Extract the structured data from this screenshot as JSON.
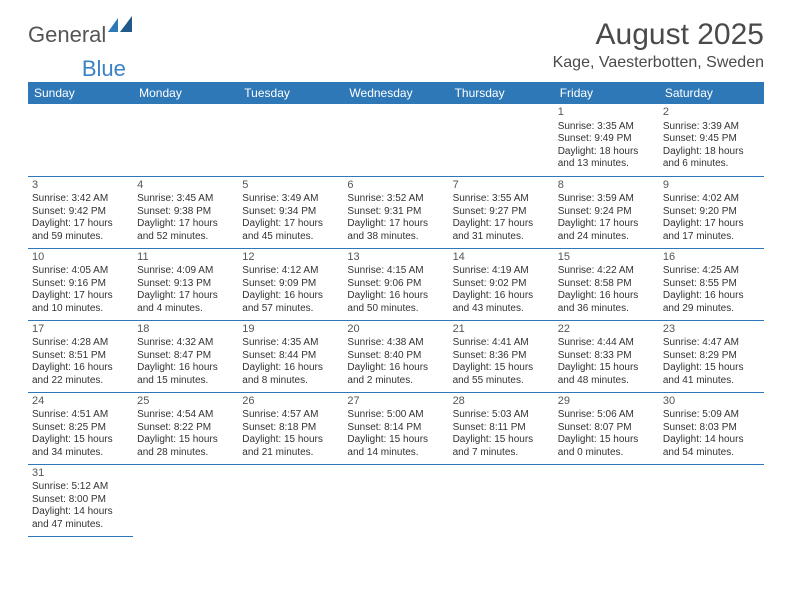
{
  "brand": {
    "word1": "General",
    "word2": "Blue"
  },
  "title": "August 2025",
  "location": "Kage, Vaesterbotten, Sweden",
  "header_bg": "#2e78b7",
  "header_text": "#ffffff",
  "border_color": "#2e78b7",
  "days": [
    "Sunday",
    "Monday",
    "Tuesday",
    "Wednesday",
    "Thursday",
    "Friday",
    "Saturday"
  ],
  "weeks": [
    [
      null,
      null,
      null,
      null,
      null,
      {
        "n": "1",
        "sr": "3:35 AM",
        "ss": "9:49 PM",
        "dl": "18 hours and 13 minutes."
      },
      {
        "n": "2",
        "sr": "3:39 AM",
        "ss": "9:45 PM",
        "dl": "18 hours and 6 minutes."
      }
    ],
    [
      {
        "n": "3",
        "sr": "3:42 AM",
        "ss": "9:42 PM",
        "dl": "17 hours and 59 minutes."
      },
      {
        "n": "4",
        "sr": "3:45 AM",
        "ss": "9:38 PM",
        "dl": "17 hours and 52 minutes."
      },
      {
        "n": "5",
        "sr": "3:49 AM",
        "ss": "9:34 PM",
        "dl": "17 hours and 45 minutes."
      },
      {
        "n": "6",
        "sr": "3:52 AM",
        "ss": "9:31 PM",
        "dl": "17 hours and 38 minutes."
      },
      {
        "n": "7",
        "sr": "3:55 AM",
        "ss": "9:27 PM",
        "dl": "17 hours and 31 minutes."
      },
      {
        "n": "8",
        "sr": "3:59 AM",
        "ss": "9:24 PM",
        "dl": "17 hours and 24 minutes."
      },
      {
        "n": "9",
        "sr": "4:02 AM",
        "ss": "9:20 PM",
        "dl": "17 hours and 17 minutes."
      }
    ],
    [
      {
        "n": "10",
        "sr": "4:05 AM",
        "ss": "9:16 PM",
        "dl": "17 hours and 10 minutes."
      },
      {
        "n": "11",
        "sr": "4:09 AM",
        "ss": "9:13 PM",
        "dl": "17 hours and 4 minutes."
      },
      {
        "n": "12",
        "sr": "4:12 AM",
        "ss": "9:09 PM",
        "dl": "16 hours and 57 minutes."
      },
      {
        "n": "13",
        "sr": "4:15 AM",
        "ss": "9:06 PM",
        "dl": "16 hours and 50 minutes."
      },
      {
        "n": "14",
        "sr": "4:19 AM",
        "ss": "9:02 PM",
        "dl": "16 hours and 43 minutes."
      },
      {
        "n": "15",
        "sr": "4:22 AM",
        "ss": "8:58 PM",
        "dl": "16 hours and 36 minutes."
      },
      {
        "n": "16",
        "sr": "4:25 AM",
        "ss": "8:55 PM",
        "dl": "16 hours and 29 minutes."
      }
    ],
    [
      {
        "n": "17",
        "sr": "4:28 AM",
        "ss": "8:51 PM",
        "dl": "16 hours and 22 minutes."
      },
      {
        "n": "18",
        "sr": "4:32 AM",
        "ss": "8:47 PM",
        "dl": "16 hours and 15 minutes."
      },
      {
        "n": "19",
        "sr": "4:35 AM",
        "ss": "8:44 PM",
        "dl": "16 hours and 8 minutes."
      },
      {
        "n": "20",
        "sr": "4:38 AM",
        "ss": "8:40 PM",
        "dl": "16 hours and 2 minutes."
      },
      {
        "n": "21",
        "sr": "4:41 AM",
        "ss": "8:36 PM",
        "dl": "15 hours and 55 minutes."
      },
      {
        "n": "22",
        "sr": "4:44 AM",
        "ss": "8:33 PM",
        "dl": "15 hours and 48 minutes."
      },
      {
        "n": "23",
        "sr": "4:47 AM",
        "ss": "8:29 PM",
        "dl": "15 hours and 41 minutes."
      }
    ],
    [
      {
        "n": "24",
        "sr": "4:51 AM",
        "ss": "8:25 PM",
        "dl": "15 hours and 34 minutes."
      },
      {
        "n": "25",
        "sr": "4:54 AM",
        "ss": "8:22 PM",
        "dl": "15 hours and 28 minutes."
      },
      {
        "n": "26",
        "sr": "4:57 AM",
        "ss": "8:18 PM",
        "dl": "15 hours and 21 minutes."
      },
      {
        "n": "27",
        "sr": "5:00 AM",
        "ss": "8:14 PM",
        "dl": "15 hours and 14 minutes."
      },
      {
        "n": "28",
        "sr": "5:03 AM",
        "ss": "8:11 PM",
        "dl": "15 hours and 7 minutes."
      },
      {
        "n": "29",
        "sr": "5:06 AM",
        "ss": "8:07 PM",
        "dl": "15 hours and 0 minutes."
      },
      {
        "n": "30",
        "sr": "5:09 AM",
        "ss": "8:03 PM",
        "dl": "14 hours and 54 minutes."
      }
    ],
    [
      {
        "n": "31",
        "sr": "5:12 AM",
        "ss": "8:00 PM",
        "dl": "14 hours and 47 minutes."
      },
      null,
      null,
      null,
      null,
      null,
      null
    ]
  ],
  "labels": {
    "sunrise": "Sunrise:",
    "sunset": "Sunset:",
    "daylight": "Daylight:"
  }
}
